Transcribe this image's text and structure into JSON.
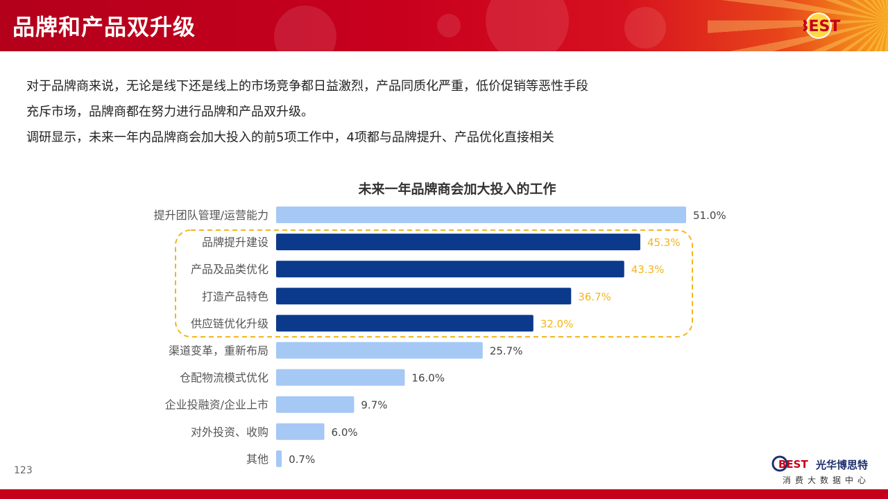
{
  "header": {
    "title": "品牌和产品双升级",
    "logo": "BEST"
  },
  "intro": {
    "line1": "对于品牌商来说，无论是线下还是线上的市场竞争都日益激烈，产品同质化严重，低价促销等恶性手段",
    "line2": "充斥市场，品牌商都在努力进行品牌和产品双升级。",
    "line3": "调研显示，未来一年内品牌商会加大投入的前5项工作中，4项都与品牌提升、产品优化直接相关"
  },
  "page_number": "123",
  "brand": {
    "name": "光华博思特",
    "subtitle": "消费大数据中心",
    "logo_text": "BEST"
  },
  "colors": {
    "highlight": "#0b3a8c",
    "normal": "#a6c8f5",
    "highlight_label": "#f2b51b",
    "normal_label": "#444444",
    "header": "#c4001c"
  },
  "chart_data": {
    "type": "bar",
    "orientation": "horizontal",
    "title": "未来一年品牌商会加大投入的工作",
    "categories": [
      "提升团队管理/运营能力",
      "品牌提升建设",
      "产品及品类优化",
      "打造产品特色",
      "供应链优化升级",
      "渠道变革，重新布局",
      "仓配物流模式优化",
      "企业投融资/企业上市",
      "对外投资、收购",
      "其他"
    ],
    "values": [
      51.0,
      45.3,
      43.3,
      36.7,
      32.0,
      25.7,
      16.0,
      9.7,
      6.0,
      0.7
    ],
    "value_labels": [
      "51.0%",
      "45.3%",
      "43.3%",
      "36.7%",
      "32.0%",
      "25.7%",
      "16.0%",
      "9.7%",
      "6.0%",
      "0.7%"
    ],
    "highlighted": [
      false,
      true,
      true,
      true,
      true,
      false,
      false,
      false,
      false,
      false
    ],
    "xlim": [
      0,
      51.0
    ],
    "grid": false
  }
}
